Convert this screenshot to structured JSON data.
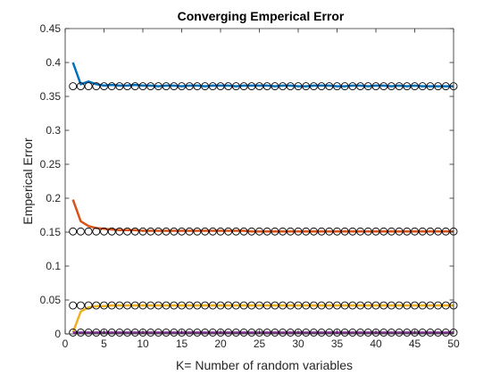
{
  "chart_data": {
    "type": "line",
    "title": "Converging Emperical Error",
    "xlabel": "K= Number of random variables",
    "ylabel": "Emperical Error",
    "xlim": [
      0,
      50
    ],
    "ylim": [
      0,
      0.45
    ],
    "xticks": [
      0,
      5,
      10,
      15,
      20,
      25,
      30,
      35,
      40,
      45,
      50
    ],
    "yticks": [
      0,
      0.05,
      0.1,
      0.15,
      0.2,
      0.25,
      0.3,
      0.35,
      0.4,
      0.45
    ],
    "xtick_labels": [
      "0",
      "5",
      "10",
      "15",
      "20",
      "25",
      "30",
      "35",
      "40",
      "45",
      "50"
    ],
    "ytick_labels": [
      "0",
      "0.05",
      "0.1",
      "0.15",
      "0.2",
      "0.25",
      "0.3",
      "0.35",
      "0.4",
      "0.45"
    ],
    "grid": false,
    "box": true,
    "series": [
      {
        "color": "#0072BD",
        "x": [
          1,
          2,
          3,
          4,
          5,
          6,
          7,
          8,
          9,
          10,
          11,
          12,
          13,
          14,
          15,
          16,
          17,
          18,
          19,
          20,
          21,
          22,
          23,
          24,
          25,
          26,
          27,
          28,
          29,
          30,
          31,
          32,
          33,
          34,
          35,
          36,
          37,
          38,
          39,
          40,
          41,
          42,
          43,
          44,
          45,
          46,
          47,
          48,
          49,
          50
        ],
        "y": [
          0.4,
          0.368,
          0.372,
          0.368,
          0.366,
          0.367,
          0.366,
          0.366,
          0.367,
          0.366,
          0.366,
          0.365,
          0.366,
          0.366,
          0.365,
          0.366,
          0.366,
          0.365,
          0.366,
          0.366,
          0.366,
          0.365,
          0.366,
          0.366,
          0.366,
          0.366,
          0.365,
          0.366,
          0.366,
          0.365,
          0.365,
          0.366,
          0.366,
          0.366,
          0.365,
          0.365,
          0.366,
          0.366,
          0.365,
          0.366,
          0.366,
          0.365,
          0.366,
          0.365,
          0.366,
          0.365,
          0.365,
          0.365,
          0.365,
          0.365
        ]
      },
      {
        "color": "#D95319",
        "x": [
          1,
          2,
          3,
          4,
          5,
          6,
          7,
          8,
          9,
          10,
          11,
          12,
          13,
          14,
          15,
          16,
          17,
          18,
          19,
          20,
          21,
          22,
          23,
          24,
          25,
          26,
          27,
          28,
          29,
          30,
          31,
          32,
          33,
          34,
          35,
          36,
          37,
          38,
          39,
          40,
          41,
          42,
          43,
          44,
          45,
          46,
          47,
          48,
          49,
          50
        ],
        "y": [
          0.198,
          0.166,
          0.159,
          0.156,
          0.155,
          0.154,
          0.153,
          0.153,
          0.153,
          0.152,
          0.152,
          0.152,
          0.152,
          0.152,
          0.152,
          0.152,
          0.152,
          0.152,
          0.152,
          0.152,
          0.152,
          0.152,
          0.152,
          0.151,
          0.151,
          0.151,
          0.151,
          0.151,
          0.151,
          0.151,
          0.151,
          0.151,
          0.151,
          0.151,
          0.151,
          0.151,
          0.151,
          0.151,
          0.151,
          0.151,
          0.151,
          0.151,
          0.151,
          0.151,
          0.151,
          0.151,
          0.151,
          0.151,
          0.151,
          0.151
        ]
      },
      {
        "color": "#EDB120",
        "x": [
          1,
          2,
          3,
          4,
          5,
          6,
          7,
          8,
          9,
          10,
          11,
          12,
          13,
          14,
          15,
          16,
          17,
          18,
          19,
          20,
          21,
          22,
          23,
          24,
          25,
          26,
          27,
          28,
          29,
          30,
          31,
          32,
          33,
          34,
          35,
          36,
          37,
          38,
          39,
          40,
          41,
          42,
          43,
          44,
          45,
          46,
          47,
          48,
          49,
          50
        ],
        "y": [
          0.002,
          0.033,
          0.039,
          0.041,
          0.041,
          0.042,
          0.042,
          0.042,
          0.042,
          0.042,
          0.042,
          0.042,
          0.042,
          0.042,
          0.042,
          0.042,
          0.042,
          0.042,
          0.042,
          0.042,
          0.042,
          0.042,
          0.042,
          0.042,
          0.042,
          0.042,
          0.042,
          0.042,
          0.042,
          0.042,
          0.042,
          0.042,
          0.042,
          0.042,
          0.042,
          0.042,
          0.042,
          0.042,
          0.042,
          0.042,
          0.042,
          0.042,
          0.042,
          0.042,
          0.042,
          0.042,
          0.042,
          0.042,
          0.042,
          0.042
        ]
      },
      {
        "color": "#7E2F8E",
        "x": [
          1,
          2,
          3,
          4,
          5,
          6,
          7,
          8,
          9,
          10,
          11,
          12,
          13,
          14,
          15,
          16,
          17,
          18,
          19,
          20,
          21,
          22,
          23,
          24,
          25,
          26,
          27,
          28,
          29,
          30,
          31,
          32,
          33,
          34,
          35,
          36,
          37,
          38,
          39,
          40,
          41,
          42,
          43,
          44,
          45,
          46,
          47,
          48,
          49,
          50
        ],
        "y": [
          0.002,
          0.002,
          0.002,
          0.002,
          0.002,
          0.002,
          0.002,
          0.002,
          0.002,
          0.002,
          0.002,
          0.002,
          0.002,
          0.002,
          0.002,
          0.002,
          0.002,
          0.002,
          0.002,
          0.002,
          0.002,
          0.002,
          0.002,
          0.002,
          0.002,
          0.002,
          0.002,
          0.002,
          0.002,
          0.002,
          0.002,
          0.002,
          0.002,
          0.002,
          0.002,
          0.002,
          0.002,
          0.002,
          0.002,
          0.002,
          0.002,
          0.002,
          0.002,
          0.002,
          0.002,
          0.002,
          0.002,
          0.002,
          0.002,
          0.002
        ]
      }
    ],
    "marker_series": [
      {
        "marker": "circle",
        "color": "#000000",
        "y_constant": 0.365
      },
      {
        "marker": "circle",
        "color": "#000000",
        "y_constant": 0.151
      },
      {
        "marker": "circle",
        "color": "#000000",
        "y_constant": 0.042
      },
      {
        "marker": "circle",
        "color": "#000000",
        "y_constant": 0.002
      }
    ]
  }
}
